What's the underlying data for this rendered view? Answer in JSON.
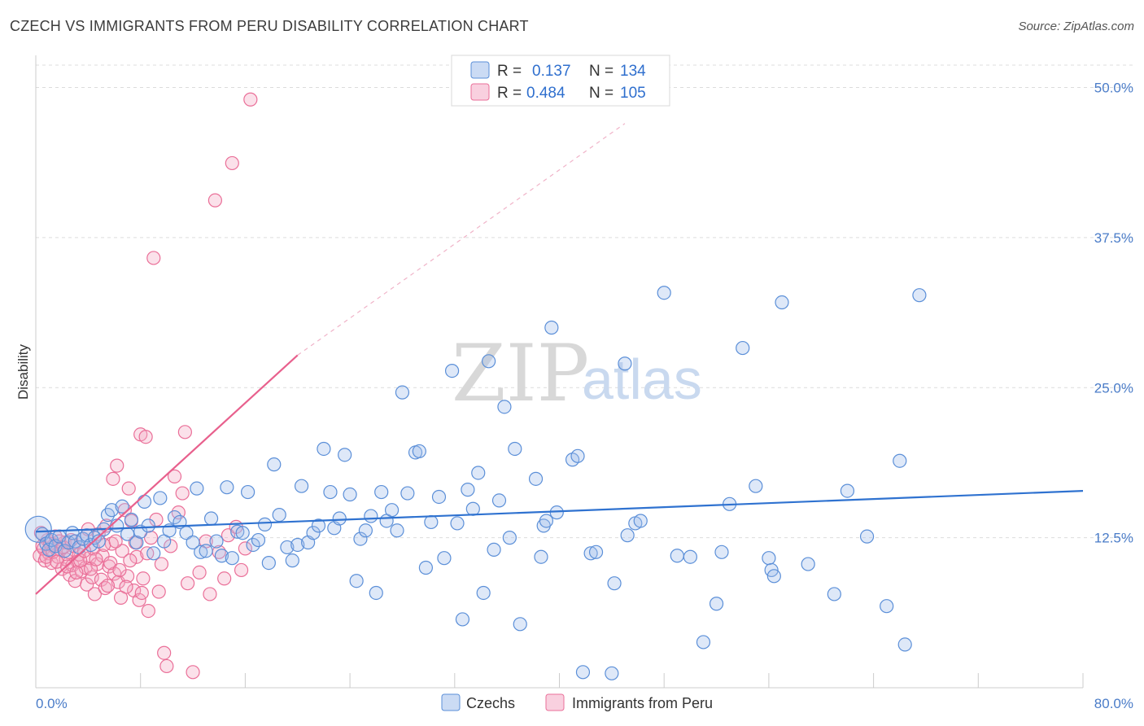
{
  "title": "CZECH VS IMMIGRANTS FROM PERU DISABILITY CORRELATION CHART",
  "source": "Source: ZipAtlas.com",
  "watermark": {
    "zip": "ZIP",
    "atlas": "atlas"
  },
  "colors": {
    "czechs": "#5b8fd8",
    "czechs_fill": "rgba(160,190,235,0.35)",
    "peru": "#ea6f98",
    "peru_fill": "rgba(244,170,196,0.35)",
    "czech_line": "#2f72d0",
    "peru_line": "#e8608d",
    "tick_text": "#4a7cc8"
  },
  "legend": {
    "rows": [
      {
        "r_label": "R =",
        "r_value": "0.137",
        "n_label": "N =",
        "n_value": "134"
      },
      {
        "r_label": "R =",
        "r_value": "0.484",
        "n_label": "N =",
        "n_value": "105"
      }
    ]
  },
  "chart_data": {
    "type": "scatter",
    "title": "CZECH VS IMMIGRANTS FROM PERU DISABILITY CORRELATION CHART",
    "xlabel": "",
    "ylabel": "Disability",
    "xlim": [
      0,
      80
    ],
    "ylim": [
      0,
      52
    ],
    "x_tick_labels": [
      "0.0%",
      "80.0%"
    ],
    "y_ticks": [
      12.5,
      25.0,
      37.5,
      50.0
    ],
    "y_tick_labels": [
      "12.5%",
      "25.0%",
      "37.5%",
      "50.0%"
    ],
    "grid": true,
    "legend_position": "top-center",
    "series": [
      {
        "name": "Czechs",
        "trend": {
          "x0": 0,
          "y0": 13.0,
          "x1": 80,
          "y1": 16.4
        },
        "points": [
          [
            0.5,
            12.8
          ],
          [
            0.8,
            12.0
          ],
          [
            1.0,
            11.5
          ],
          [
            1.2,
            12.3
          ],
          [
            1.5,
            11.8
          ],
          [
            1.8,
            12.6
          ],
          [
            2.2,
            11.4
          ],
          [
            2.5,
            12.1
          ],
          [
            2.8,
            12.9
          ],
          [
            3.0,
            12.2
          ],
          [
            3.3,
            11.7
          ],
          [
            3.6,
            12.4
          ],
          [
            3.9,
            12.7
          ],
          [
            4.2,
            11.9
          ],
          [
            4.5,
            12.5
          ],
          [
            4.8,
            12.2
          ],
          [
            5.2,
            13.2
          ],
          [
            5.5,
            14.4
          ],
          [
            5.8,
            14.8
          ],
          [
            6.2,
            13.5
          ],
          [
            6.6,
            15.1
          ],
          [
            7.0,
            12.8
          ],
          [
            7.3,
            14.0
          ],
          [
            7.7,
            12.1
          ],
          [
            8.0,
            13.0
          ],
          [
            8.3,
            15.5
          ],
          [
            8.6,
            13.5
          ],
          [
            9.0,
            11.2
          ],
          [
            9.5,
            15.8
          ],
          [
            9.8,
            12.2
          ],
          [
            10.2,
            13.1
          ],
          [
            10.6,
            14.2
          ],
          [
            11.0,
            13.8
          ],
          [
            11.5,
            12.9
          ],
          [
            12.0,
            12.1
          ],
          [
            12.3,
            16.6
          ],
          [
            12.6,
            11.3
          ],
          [
            13.0,
            11.4
          ],
          [
            13.4,
            14.1
          ],
          [
            13.8,
            12.2
          ],
          [
            14.2,
            11.0
          ],
          [
            14.6,
            16.7
          ],
          [
            15.0,
            10.8
          ],
          [
            15.4,
            13.0
          ],
          [
            15.8,
            12.9
          ],
          [
            16.2,
            16.3
          ],
          [
            16.6,
            11.9
          ],
          [
            17.0,
            12.3
          ],
          [
            17.5,
            13.6
          ],
          [
            17.8,
            10.4
          ],
          [
            18.2,
            18.6
          ],
          [
            18.6,
            14.4
          ],
          [
            19.2,
            11.7
          ],
          [
            19.6,
            10.6
          ],
          [
            20.0,
            11.9
          ],
          [
            20.3,
            16.8
          ],
          [
            20.8,
            12.1
          ],
          [
            21.2,
            12.9
          ],
          [
            21.6,
            13.5
          ],
          [
            22.0,
            19.9
          ],
          [
            22.5,
            16.3
          ],
          [
            22.8,
            13.3
          ],
          [
            23.2,
            14.1
          ],
          [
            23.6,
            19.4
          ],
          [
            24.0,
            16.1
          ],
          [
            24.5,
            8.9
          ],
          [
            24.8,
            12.4
          ],
          [
            25.2,
            13.1
          ],
          [
            25.6,
            14.3
          ],
          [
            26.0,
            7.9
          ],
          [
            26.4,
            16.3
          ],
          [
            26.8,
            13.9
          ],
          [
            27.2,
            14.8
          ],
          [
            27.6,
            13.1
          ],
          [
            28.0,
            24.6
          ],
          [
            28.4,
            16.2
          ],
          [
            29.0,
            19.6
          ],
          [
            29.3,
            19.7
          ],
          [
            29.8,
            10.0
          ],
          [
            30.2,
            13.8
          ],
          [
            30.8,
            15.9
          ],
          [
            31.2,
            10.8
          ],
          [
            31.8,
            26.4
          ],
          [
            32.2,
            13.7
          ],
          [
            32.6,
            5.7
          ],
          [
            33.0,
            16.5
          ],
          [
            33.4,
            14.9
          ],
          [
            33.8,
            17.9
          ],
          [
            34.2,
            7.9
          ],
          [
            34.6,
            27.2
          ],
          [
            35.0,
            11.5
          ],
          [
            35.4,
            15.6
          ],
          [
            35.8,
            23.4
          ],
          [
            36.2,
            12.5
          ],
          [
            36.6,
            19.9
          ],
          [
            37.0,
            5.3
          ],
          [
            38.2,
            17.4
          ],
          [
            38.6,
            10.9
          ],
          [
            38.8,
            13.5
          ],
          [
            39.0,
            13.9
          ],
          [
            39.4,
            30.0
          ],
          [
            39.8,
            14.6
          ],
          [
            41.0,
            19.0
          ],
          [
            41.4,
            19.3
          ],
          [
            41.8,
            1.3
          ],
          [
            42.4,
            11.2
          ],
          [
            42.8,
            11.3
          ],
          [
            44.0,
            1.2
          ],
          [
            44.2,
            8.7
          ],
          [
            45.0,
            27.0
          ],
          [
            45.2,
            12.7
          ],
          [
            45.8,
            13.7
          ],
          [
            46.2,
            13.9
          ],
          [
            48.0,
            32.9
          ],
          [
            49.0,
            11.0
          ],
          [
            50.0,
            10.9
          ],
          [
            51.0,
            3.8
          ],
          [
            52.0,
            7.0
          ],
          [
            52.4,
            11.3
          ],
          [
            53.0,
            15.3
          ],
          [
            54.0,
            28.3
          ],
          [
            55.0,
            16.8
          ],
          [
            56.0,
            10.8
          ],
          [
            56.2,
            9.8
          ],
          [
            56.4,
            9.3
          ],
          [
            57.0,
            32.1
          ],
          [
            59.0,
            10.3
          ],
          [
            61.0,
            7.8
          ],
          [
            62.0,
            16.4
          ],
          [
            63.5,
            12.6
          ],
          [
            65.0,
            6.8
          ],
          [
            66.0,
            18.9
          ],
          [
            66.4,
            3.6
          ],
          [
            67.5,
            32.7
          ]
        ]
      },
      {
        "name": "Immigrants from Peru",
        "trend": {
          "x0": 0,
          "y0": 7.8,
          "x1": 20,
          "y1": 27.7,
          "dashed_to_x": 45,
          "dashed_to_y": 47.0
        },
        "points": [
          [
            0.3,
            11.0
          ],
          [
            0.5,
            11.8
          ],
          [
            0.7,
            10.6
          ],
          [
            0.9,
            12.3
          ],
          [
            1.0,
            11.2
          ],
          [
            1.2,
            10.4
          ],
          [
            1.4,
            11.9
          ],
          [
            1.5,
            12.6
          ],
          [
            1.7,
            10.9
          ],
          [
            1.9,
            11.5
          ],
          [
            2.0,
            9.9
          ],
          [
            2.2,
            12.1
          ],
          [
            2.3,
            10.7
          ],
          [
            2.5,
            11.3
          ],
          [
            2.6,
            9.4
          ],
          [
            2.8,
            10.2
          ],
          [
            2.9,
            11.8
          ],
          [
            3.0,
            8.9
          ],
          [
            3.2,
            10.5
          ],
          [
            3.3,
            11.1
          ],
          [
            3.5,
            9.7
          ],
          [
            3.6,
            12.4
          ],
          [
            3.8,
            10.0
          ],
          [
            3.9,
            8.6
          ],
          [
            4.0,
            13.2
          ],
          [
            4.1,
            10.8
          ],
          [
            4.3,
            9.2
          ],
          [
            4.4,
            11.6
          ],
          [
            4.5,
            7.8
          ],
          [
            4.7,
            10.3
          ],
          [
            4.8,
            12.8
          ],
          [
            5.0,
            9.0
          ],
          [
            5.1,
            11.0
          ],
          [
            5.3,
            8.3
          ],
          [
            5.4,
            13.5
          ],
          [
            5.6,
            10.1
          ],
          [
            5.8,
            12.0
          ],
          [
            5.9,
            17.4
          ],
          [
            6.0,
            9.5
          ],
          [
            6.2,
            18.5
          ],
          [
            6.3,
            8.8
          ],
          [
            6.5,
            7.5
          ],
          [
            6.6,
            11.4
          ],
          [
            6.8,
            14.8
          ],
          [
            7.0,
            9.3
          ],
          [
            7.1,
            16.6
          ],
          [
            7.3,
            13.9
          ],
          [
            7.5,
            8.1
          ],
          [
            7.7,
            10.9
          ],
          [
            7.9,
            7.3
          ],
          [
            8.0,
            21.1
          ],
          [
            8.2,
            9.1
          ],
          [
            8.4,
            20.9
          ],
          [
            8.6,
            6.4
          ],
          [
            8.8,
            12.5
          ],
          [
            9.0,
            35.8
          ],
          [
            9.2,
            14.0
          ],
          [
            9.4,
            8.0
          ],
          [
            9.6,
            10.3
          ],
          [
            9.8,
            2.9
          ],
          [
            10.0,
            1.8
          ],
          [
            10.3,
            11.8
          ],
          [
            10.6,
            17.6
          ],
          [
            10.9,
            14.6
          ],
          [
            11.2,
            16.2
          ],
          [
            11.4,
            21.3
          ],
          [
            11.6,
            8.7
          ],
          [
            12.0,
            1.3
          ],
          [
            12.5,
            9.6
          ],
          [
            13.0,
            12.2
          ],
          [
            13.3,
            7.8
          ],
          [
            13.7,
            40.6
          ],
          [
            14.0,
            11.3
          ],
          [
            14.4,
            9.1
          ],
          [
            14.7,
            12.7
          ],
          [
            15.0,
            43.7
          ],
          [
            15.3,
            13.4
          ],
          [
            15.7,
            9.8
          ],
          [
            16.0,
            11.6
          ],
          [
            16.4,
            49.0
          ],
          [
            0.4,
            12.9
          ],
          [
            0.6,
            11.6
          ],
          [
            0.8,
            10.9
          ],
          [
            1.1,
            12.0
          ],
          [
            1.3,
            11.3
          ],
          [
            1.6,
            10.5
          ],
          [
            1.8,
            12.2
          ],
          [
            2.1,
            11.7
          ],
          [
            2.4,
            10.1
          ],
          [
            2.7,
            12.3
          ],
          [
            3.1,
            9.6
          ],
          [
            3.4,
            10.6
          ],
          [
            3.7,
            11.4
          ],
          [
            4.2,
            9.9
          ],
          [
            4.6,
            10.7
          ],
          [
            5.2,
            11.9
          ],
          [
            5.5,
            8.5
          ],
          [
            5.7,
            10.4
          ],
          [
            6.1,
            12.2
          ],
          [
            6.4,
            9.8
          ],
          [
            6.9,
            8.4
          ],
          [
            7.2,
            10.6
          ],
          [
            7.6,
            12.1
          ],
          [
            8.1,
            7.9
          ],
          [
            8.5,
            11.2
          ]
        ]
      }
    ]
  },
  "bottom_legend": [
    {
      "label": "Czechs"
    },
    {
      "label": "Immigrants from Peru"
    }
  ]
}
